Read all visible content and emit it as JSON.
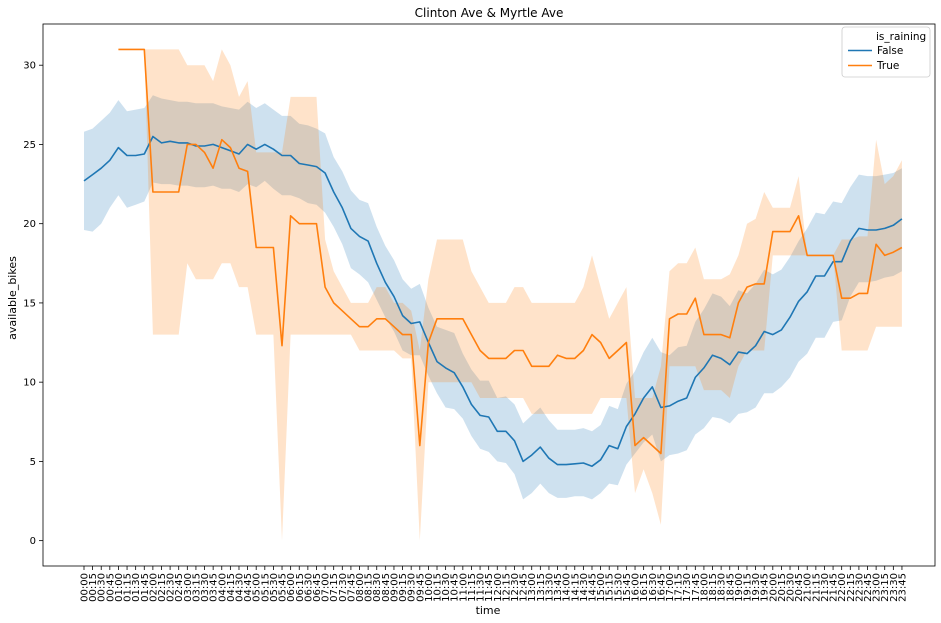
{
  "chart_data": {
    "type": "line",
    "title": "Clinton Ave & Myrtle Ave",
    "xlabel": "time",
    "ylabel": "available_bikes",
    "ylim": [
      -1.6,
      32.6
    ],
    "yticks": [
      0,
      5,
      10,
      15,
      20,
      25,
      30
    ],
    "grid": false,
    "legend": {
      "title": "is_raining",
      "placement": "top-right"
    },
    "categories": [
      "00:00",
      "00:15",
      "00:30",
      "00:45",
      "01:00",
      "01:15",
      "01:30",
      "01:45",
      "02:00",
      "02:15",
      "02:30",
      "02:45",
      "03:00",
      "03:15",
      "03:30",
      "03:45",
      "04:00",
      "04:15",
      "04:30",
      "04:45",
      "05:00",
      "05:15",
      "05:30",
      "05:45",
      "06:00",
      "06:15",
      "06:30",
      "06:45",
      "07:00",
      "07:15",
      "07:30",
      "07:45",
      "08:00",
      "08:15",
      "08:30",
      "08:45",
      "09:00",
      "09:15",
      "09:30",
      "09:45",
      "10:00",
      "10:15",
      "10:30",
      "10:45",
      "11:00",
      "11:15",
      "11:30",
      "11:45",
      "12:00",
      "12:15",
      "12:30",
      "12:45",
      "13:00",
      "13:15",
      "13:30",
      "13:45",
      "14:00",
      "14:15",
      "14:30",
      "14:45",
      "15:00",
      "15:15",
      "15:30",
      "15:45",
      "16:00",
      "16:15",
      "16:30",
      "16:45",
      "17:00",
      "17:15",
      "17:30",
      "17:45",
      "18:00",
      "18:15",
      "18:30",
      "18:45",
      "19:00",
      "19:15",
      "19:30",
      "19:45",
      "20:00",
      "20:15",
      "20:30",
      "20:45",
      "21:00",
      "21:15",
      "21:30",
      "21:45",
      "22:00",
      "22:15",
      "22:30",
      "22:45",
      "23:00",
      "23:15",
      "23:30",
      "23:45"
    ],
    "series": [
      {
        "name": "False",
        "color": "#1f77b4",
        "band_color": "#1f77b4",
        "values": [
          22.7,
          23.1,
          23.5,
          24.0,
          24.8,
          24.3,
          24.3,
          24.4,
          25.5,
          25.1,
          25.2,
          25.1,
          25.1,
          24.9,
          24.9,
          25.0,
          24.8,
          24.6,
          24.4,
          25.0,
          24.7,
          25.0,
          24.7,
          24.3,
          24.3,
          23.8,
          23.7,
          23.6,
          23.2,
          22.0,
          21.0,
          19.7,
          19.2,
          18.9,
          17.5,
          16.3,
          15.4,
          14.2,
          13.7,
          13.8,
          12.5,
          11.3,
          10.9,
          10.6,
          9.7,
          8.6,
          7.9,
          7.8,
          6.9,
          6.9,
          6.3,
          5.0,
          5.4,
          5.9,
          5.2,
          4.8,
          4.8,
          4.85,
          4.9,
          4.7,
          5.1,
          6.0,
          5.8,
          7.2,
          8.0,
          9.0,
          9.7,
          8.4,
          8.5,
          8.8,
          9.0,
          10.3,
          10.9,
          11.7,
          11.5,
          11.1,
          11.9,
          11.8,
          12.3,
          13.2,
          13.0,
          13.3,
          14.1,
          15.1,
          15.7,
          16.7,
          16.7,
          17.6,
          17.6,
          18.9,
          19.7,
          19.6,
          19.6,
          19.7,
          19.9,
          20.3
        ],
        "lower": [
          19.6,
          19.5,
          20.0,
          21.0,
          21.8,
          21.0,
          21.2,
          21.4,
          22.6,
          22.5,
          22.5,
          22.4,
          22.4,
          22.3,
          22.3,
          22.4,
          22.2,
          22.2,
          22.0,
          22.5,
          22.3,
          22.7,
          22.2,
          21.8,
          21.8,
          21.6,
          21.3,
          21.2,
          20.7,
          19.8,
          18.7,
          17.2,
          16.8,
          16.3,
          15.2,
          14.1,
          13.2,
          12.0,
          11.7,
          11.7,
          10.4,
          9.3,
          8.4,
          8.3,
          7.7,
          6.6,
          5.8,
          5.6,
          5.0,
          4.9,
          4.2,
          2.6,
          3.0,
          3.6,
          3.0,
          2.7,
          2.7,
          2.8,
          2.8,
          2.6,
          3.0,
          3.6,
          3.5,
          4.8,
          5.5,
          6.2,
          6.7,
          5.0,
          5.4,
          5.5,
          5.7,
          6.7,
          7.1,
          7.8,
          7.7,
          7.4,
          8.0,
          8.1,
          8.4,
          9.3,
          9.3,
          9.7,
          10.3,
          11.3,
          11.8,
          12.8,
          12.8,
          13.8,
          13.9,
          15.4,
          16.3,
          16.3,
          16.4,
          16.6,
          16.7,
          17.0
        ],
        "upper": [
          25.8,
          26.0,
          26.5,
          27.0,
          27.8,
          27.1,
          27.2,
          27.3,
          28.1,
          27.9,
          27.8,
          27.7,
          27.7,
          27.6,
          27.6,
          27.6,
          27.4,
          27.3,
          27.2,
          27.7,
          27.3,
          27.6,
          27.2,
          26.8,
          26.8,
          26.3,
          26.2,
          26.0,
          25.7,
          24.2,
          23.3,
          22.1,
          21.5,
          21.3,
          19.8,
          18.6,
          17.7,
          16.5,
          15.9,
          16.2,
          14.7,
          13.5,
          13.3,
          13.1,
          11.8,
          10.8,
          10.1,
          10.1,
          9.0,
          9.1,
          8.6,
          7.4,
          7.9,
          8.4,
          7.6,
          7.0,
          7.0,
          7.0,
          7.1,
          6.9,
          7.3,
          8.5,
          8.3,
          9.9,
          10.7,
          11.9,
          12.8,
          11.9,
          11.7,
          12.2,
          12.3,
          13.8,
          14.6,
          15.6,
          15.4,
          14.8,
          15.8,
          15.6,
          16.2,
          17.1,
          16.8,
          17.1,
          17.9,
          18.9,
          19.7,
          20.7,
          20.6,
          21.4,
          21.3,
          22.3,
          23.1,
          23.0,
          23.0,
          23.1,
          23.2,
          23.5
        ]
      },
      {
        "name": "True",
        "color": "#ff7f0e",
        "band_color": "#ff7f0e",
        "values": [
          null,
          null,
          null,
          null,
          31.0,
          31.0,
          31.0,
          31.0,
          22.0,
          22.0,
          22.0,
          22.0,
          25.0,
          25.0,
          24.5,
          23.5,
          25.3,
          24.8,
          23.5,
          23.3,
          18.5,
          18.5,
          18.5,
          12.3,
          20.5,
          20.0,
          20.0,
          20.0,
          16.0,
          15.0,
          14.5,
          14.0,
          13.5,
          13.5,
          14.0,
          14.0,
          13.5,
          13.0,
          13.0,
          6.0,
          12.5,
          14.0,
          14.0,
          14.0,
          14.0,
          13.0,
          12.0,
          11.5,
          11.5,
          11.5,
          12.0,
          12.0,
          11.0,
          11.0,
          11.0,
          11.7,
          11.5,
          11.5,
          12.0,
          13.0,
          12.5,
          11.5,
          12.0,
          12.5,
          6.0,
          6.5,
          6.0,
          5.5,
          14.0,
          14.3,
          14.3,
          15.3,
          13.0,
          13.0,
          13.0,
          12.8,
          15.0,
          16.0,
          16.2,
          16.2,
          19.5,
          19.5,
          19.5,
          20.5,
          18.0,
          18.0,
          18.0,
          18.0,
          15.3,
          15.3,
          15.6,
          15.6,
          18.7,
          18.0,
          18.2,
          18.5
        ],
        "lower": [
          null,
          null,
          null,
          null,
          31.0,
          31.0,
          31.0,
          31.0,
          13.0,
          13.0,
          13.0,
          13.0,
          17.5,
          16.5,
          16.5,
          16.5,
          17.5,
          17.5,
          16.0,
          16.0,
          13.0,
          13.0,
          13.0,
          0.0,
          13.0,
          13.0,
          13.0,
          13.0,
          13.0,
          13.0,
          13.0,
          13.0,
          12.0,
          12.0,
          12.0,
          12.0,
          12.0,
          11.5,
          11.5,
          0.0,
          10.0,
          10.0,
          10.0,
          10.0,
          10.0,
          10.0,
          9.0,
          9.0,
          9.0,
          9.0,
          9.0,
          9.0,
          8.0,
          8.0,
          8.0,
          8.0,
          8.0,
          8.0,
          8.0,
          8.0,
          9.0,
          9.0,
          9.0,
          9.0,
          3.0,
          4.5,
          3.0,
          1.0,
          11.0,
          11.0,
          11.0,
          11.0,
          9.5,
          9.5,
          9.5,
          9.0,
          11.0,
          12.0,
          12.0,
          12.0,
          18.0,
          18.0,
          18.0,
          18.0,
          18.0,
          18.0,
          18.0,
          18.0,
          12.0,
          12.0,
          12.0,
          12.0,
          13.5,
          13.5,
          13.5,
          13.5
        ],
        "upper": [
          null,
          null,
          null,
          null,
          31.0,
          31.0,
          31.0,
          31.0,
          31.0,
          31.0,
          31.0,
          31.0,
          30.0,
          30.0,
          30.0,
          29.0,
          31.0,
          30.0,
          28.0,
          29.0,
          24.5,
          24.5,
          24.5,
          24.5,
          28.0,
          28.0,
          28.0,
          28.0,
          19.0,
          17.0,
          16.0,
          15.0,
          15.0,
          15.0,
          16.0,
          16.0,
          15.0,
          15.0,
          14.5,
          12.0,
          16.5,
          19.0,
          19.0,
          19.0,
          19.0,
          17.0,
          16.0,
          15.0,
          15.0,
          15.0,
          16.0,
          16.0,
          15.0,
          15.0,
          15.0,
          15.0,
          15.0,
          15.0,
          16.0,
          18.0,
          16.0,
          14.0,
          15.0,
          16.0,
          9.0,
          9.0,
          9.0,
          11.0,
          17.0,
          17.5,
          17.5,
          18.5,
          16.5,
          16.5,
          16.5,
          16.8,
          18.0,
          20.0,
          20.3,
          22.0,
          21.0,
          21.0,
          21.0,
          23.0,
          18.0,
          18.0,
          18.0,
          18.0,
          19.0,
          19.0,
          19.2,
          19.2,
          25.3,
          22.5,
          23.0,
          24.0
        ]
      }
    ]
  }
}
